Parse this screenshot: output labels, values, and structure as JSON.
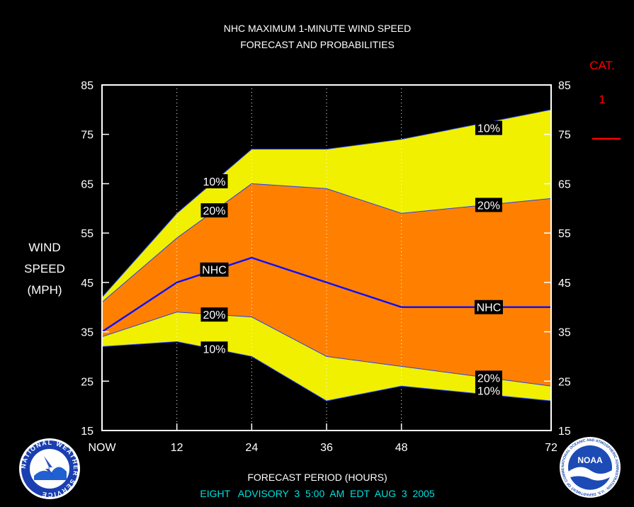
{
  "chart_data": {
    "type": "area",
    "title": "NHC MAXIMUM 1-MINUTE WIND SPEED",
    "subtitle": "FORECAST AND PROBABILITIES",
    "ylabel_lines": [
      "WIND",
      "SPEED",
      "(MPH)"
    ],
    "xlabel": "FORECAST PERIOD (HOURS)",
    "footer": "EIGHT   ADVISORY  3  5:00  AM  EDT  AUG  3  2005",
    "category": {
      "label": "CAT.",
      "value": "1"
    },
    "x": [
      0,
      12,
      24,
      36,
      48,
      72
    ],
    "x_tick_labels": [
      "NOW",
      "12",
      "24",
      "36",
      "48",
      "72"
    ],
    "y_ticks": [
      15,
      25,
      35,
      45,
      55,
      65,
      75,
      85
    ],
    "ylim": [
      15,
      85
    ],
    "xlim": [
      0,
      72
    ],
    "grid_x": [
      12,
      24,
      36,
      48
    ],
    "series": [
      {
        "name": "10%",
        "role": "upper_10",
        "values": [
          42,
          59,
          72,
          72,
          74,
          80
        ]
      },
      {
        "name": "20%",
        "role": "upper_20",
        "values": [
          41,
          54,
          65,
          64,
          59,
          62
        ]
      },
      {
        "name": "NHC",
        "role": "nhc",
        "values": [
          35,
          45,
          50,
          45,
          40,
          40
        ]
      },
      {
        "name": "20%",
        "role": "lower_20",
        "values": [
          34,
          39,
          38,
          30,
          28,
          24
        ]
      },
      {
        "name": "10%",
        "role": "lower_10",
        "values": [
          32,
          33,
          30,
          21,
          24,
          21
        ]
      }
    ],
    "series_labels": [
      {
        "text": "10%",
        "x": 18,
        "y": 65.5
      },
      {
        "text": "20%",
        "x": 18,
        "y": 59.6
      },
      {
        "text": "NHC",
        "x": 18,
        "y": 47.6
      },
      {
        "text": "20%",
        "x": 18,
        "y": 38.5
      },
      {
        "text": "10%",
        "x": 18,
        "y": 31.6
      },
      {
        "text": "10%",
        "x": 62,
        "y": 76.3
      },
      {
        "text": "20%",
        "x": 62,
        "y": 60.7
      },
      {
        "text": "NHC",
        "x": 62,
        "y": 40.0
      },
      {
        "text": "20%",
        "x": 62,
        "y": 25.7
      },
      {
        "text": "10%",
        "x": 62,
        "y": 23.1
      }
    ],
    "colors": {
      "outer_band": "#f0f000",
      "inner_band": "#ff8000",
      "nhc_line": "#1010ff",
      "axis": "#ffffff",
      "category": "#ff0000",
      "footer": "#00e0e0"
    }
  },
  "logos": {
    "nws": "NATIONAL WEATHER SERVICE",
    "noaa": "NOAA",
    "noaa_ring": "NATIONAL OCEANIC AND ATMOSPHERIC ADMINISTRATION · U.S. DEPARTMENT OF COMMERCE"
  }
}
